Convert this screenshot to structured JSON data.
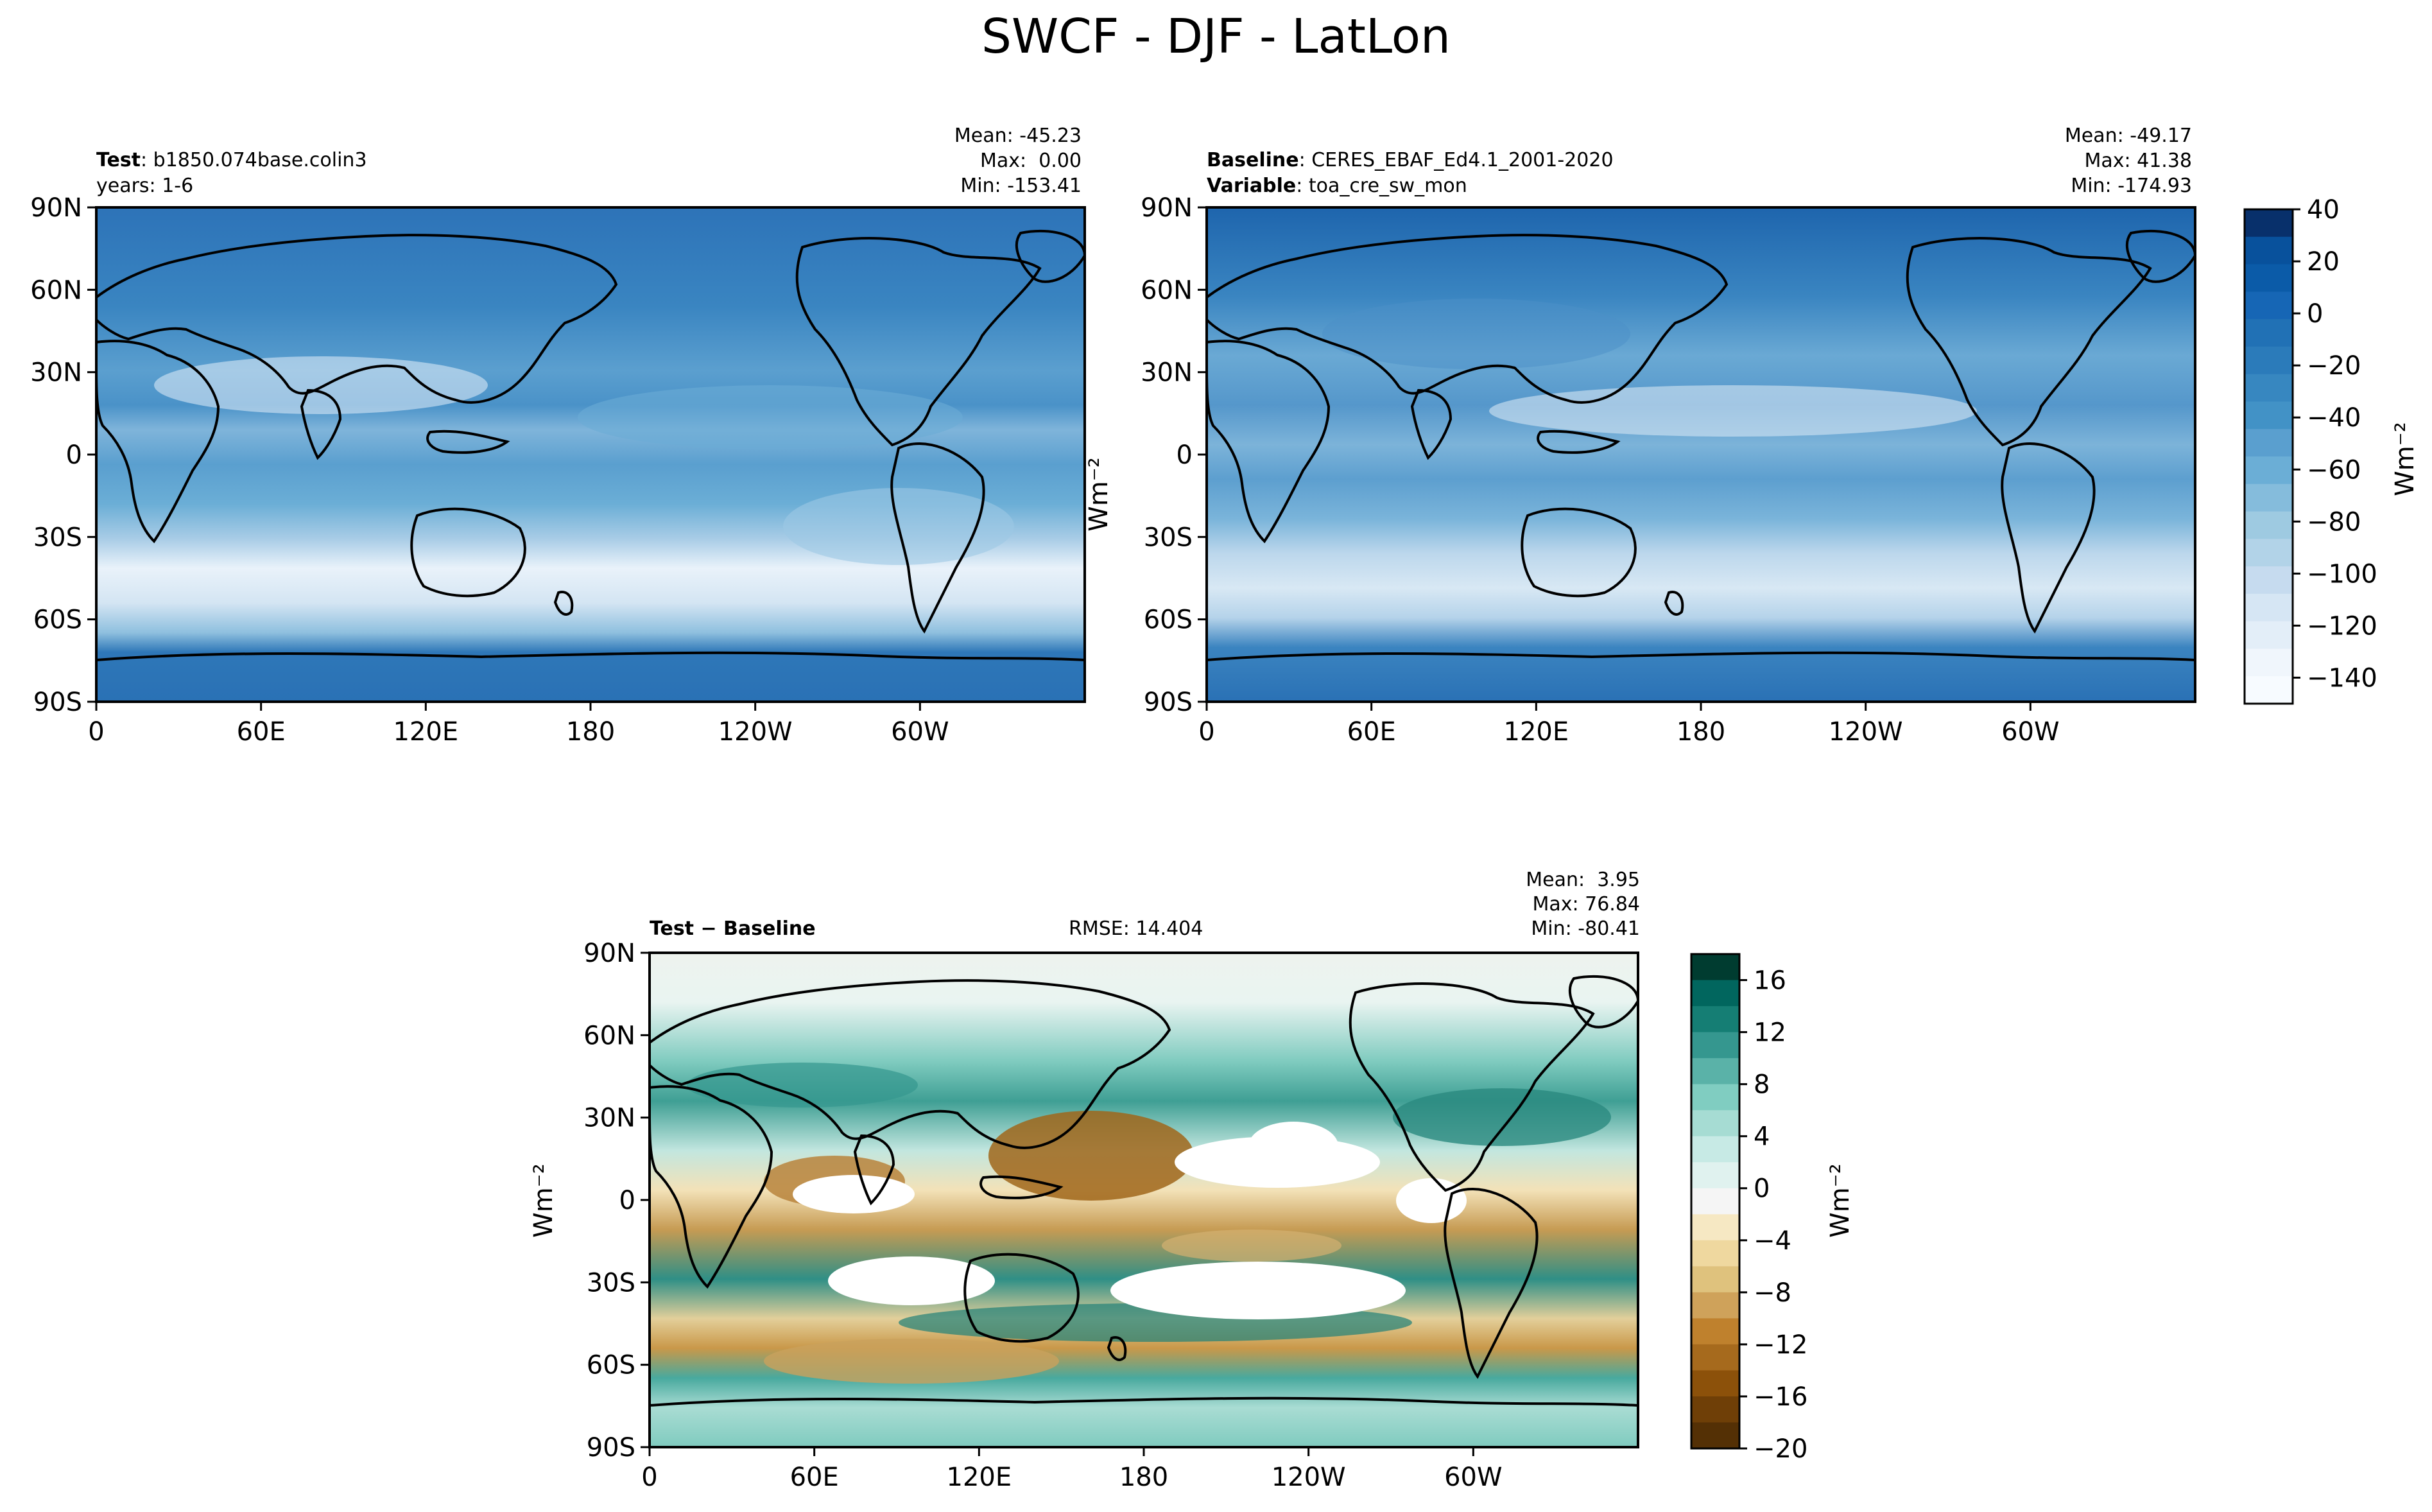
{
  "figure": {
    "title": "SWCF - DJF - LatLon"
  },
  "panels": {
    "test": {
      "label_bold": "Test",
      "label_value": ": b1850.074base.colin3",
      "line2": "years: 1-6",
      "mean": "Mean: -45.23",
      "max": "Max:  0.00",
      "min": "Min: -153.41"
    },
    "baseline": {
      "label_bold": "Baseline",
      "label_value": ": CERES_EBAF_Ed4.1_2001-2020",
      "line2_bold": "Variable",
      "line2_value": ": toa_cre_sw_mon",
      "mean": "Mean: -49.17",
      "max": "Max: 41.38",
      "min": "Min: -174.93"
    },
    "diff": {
      "label": "Test − Baseline",
      "rmse": "RMSE: 14.404",
      "mean": "Mean:  3.95",
      "max": "Max: 76.84",
      "min": "Min: -80.41"
    }
  },
  "axes": {
    "lon_ticks": [
      "0",
      "60E",
      "120E",
      "180",
      "120W",
      "60W"
    ],
    "lat_ticks": [
      "90N",
      "60N",
      "30N",
      "0",
      "30S",
      "60S",
      "90S"
    ]
  },
  "colorbars": {
    "main": {
      "ticks": [
        "40",
        "20",
        "0",
        "−20",
        "−40",
        "−60",
        "−80",
        "−100",
        "−120",
        "−140"
      ],
      "unit": "Wm⁻²",
      "colors": [
        "#08306b",
        "#08519c",
        "#0b5ba8",
        "#1666b5",
        "#2171b5",
        "#2b7bba",
        "#3787c0",
        "#4292c6",
        "#5a9fcf",
        "#6baed6",
        "#85bcdc",
        "#9ecae1",
        "#b2d3e8",
        "#c6dbef",
        "#d6e6f4",
        "#e3eef8",
        "#f0f6fc",
        "#f7fbff"
      ]
    },
    "diff": {
      "ticks": [
        "16",
        "12",
        "8",
        "4",
        "0",
        "−4",
        "−8",
        "−12",
        "−16",
        "−20"
      ],
      "unit": "Wm⁻²",
      "colors": [
        "#003c30",
        "#01665e",
        "#157e74",
        "#35978f",
        "#5ab2a8",
        "#80cdc1",
        "#a6dcd3",
        "#c7eae5",
        "#e0f2ef",
        "#f5f5f5",
        "#f6e8c3",
        "#efd89f",
        "#dfc27d",
        "#cfa25a",
        "#bf812d",
        "#a66a1d",
        "#8c510a",
        "#6f3f07",
        "#543005"
      ]
    }
  },
  "chart_data": [
    {
      "type": "heatmap",
      "title": "Test: b1850.074base.colin3",
      "subtitle": "years: 1-6",
      "variable": "SWCF",
      "season": "DJF",
      "x_ticks": [
        "0",
        "60E",
        "120E",
        "180",
        "120W",
        "60W"
      ],
      "y_ticks": [
        "90N",
        "60N",
        "30N",
        "0",
        "30S",
        "60S",
        "90S"
      ],
      "stats": {
        "mean": -45.23,
        "max": 0.0,
        "min": -153.41
      },
      "color_range": [
        -150,
        40
      ],
      "colorbar_label": "Wm⁻²"
    },
    {
      "type": "heatmap",
      "title": "Baseline: CERES_EBAF_Ed4.1_2001-2020",
      "subtitle": "Variable: toa_cre_sw_mon",
      "variable": "SWCF",
      "season": "DJF",
      "x_ticks": [
        "0",
        "60E",
        "120E",
        "180",
        "120W",
        "60W"
      ],
      "y_ticks": [
        "90N",
        "60N",
        "30N",
        "0",
        "30S",
        "60S",
        "90S"
      ],
      "stats": {
        "mean": -49.17,
        "max": 41.38,
        "min": -174.93
      },
      "color_range": [
        -150,
        40
      ],
      "colorbar_label": "Wm⁻²"
    },
    {
      "type": "heatmap",
      "title": "Test − Baseline",
      "variable": "SWCF",
      "season": "DJF",
      "x_ticks": [
        "0",
        "60E",
        "120E",
        "180",
        "120W",
        "60W"
      ],
      "y_ticks": [
        "90N",
        "60N",
        "30N",
        "0",
        "30S",
        "60S",
        "90S"
      ],
      "stats": {
        "rmse": 14.404,
        "mean": 3.95,
        "max": 76.84,
        "min": -80.41
      },
      "color_range": [
        -20,
        18
      ],
      "colorbar_label": "Wm⁻²"
    }
  ]
}
